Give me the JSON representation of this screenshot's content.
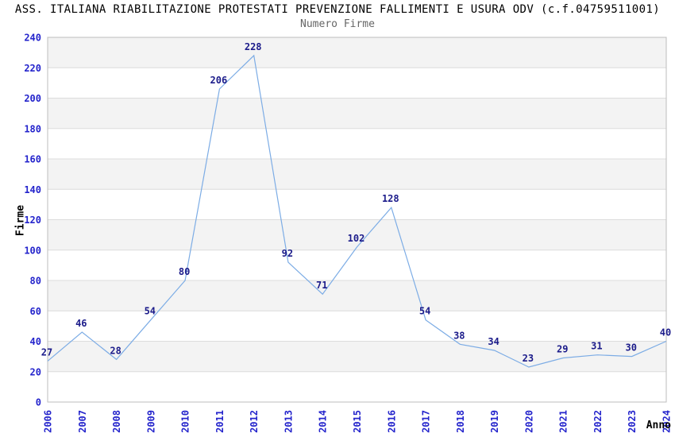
{
  "header": {
    "title": "ASS. ITALIANA RIABILITAZIONE PROTESTATI PREVENZIONE FALLIMENTI E USURA ODV (c.f.04759511001)",
    "subtitle": "Numero Firme"
  },
  "chart_data": {
    "type": "line",
    "title": "Numero Firme",
    "x": [
      "2006",
      "2007",
      "2008",
      "2009",
      "2010",
      "2011",
      "2012",
      "2013",
      "2014",
      "2015",
      "2016",
      "2017",
      "2018",
      "2019",
      "2020",
      "2021",
      "2022",
      "2023",
      "2024"
    ],
    "values": [
      27,
      46,
      28,
      54,
      80,
      206,
      228,
      92,
      71,
      102,
      128,
      54,
      38,
      34,
      23,
      29,
      31,
      30,
      40
    ],
    "xlabel": "Anno",
    "ylabel": "Firme",
    "ylim": [
      0,
      240
    ],
    "ytick_step": 20,
    "grid": true,
    "legend": false,
    "banded_background": true,
    "colors": {
      "line": "#7CACE5",
      "tick_labels": "#2424CC",
      "value_labels": "#1B1B8A",
      "band": "#F3F3F3",
      "grid_line": "#DCDCDC",
      "plot_border": "#BDBDBD",
      "title": "#000000",
      "subtitle": "#666666",
      "axis_label": "#000000",
      "background": "#FFFFFF"
    }
  }
}
